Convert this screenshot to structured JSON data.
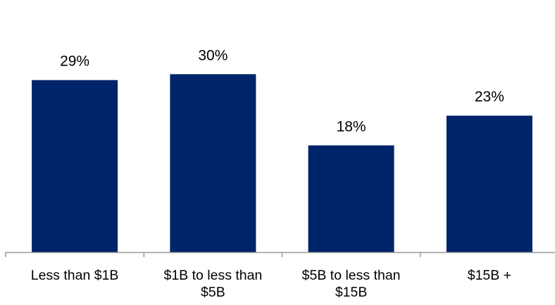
{
  "chart_data": {
    "type": "bar",
    "categories": [
      [
        "Less than $1B"
      ],
      [
        "$1B to less than",
        "$5B"
      ],
      [
        "$5B to less than",
        "$15B"
      ],
      [
        "$15B +"
      ]
    ],
    "values": [
      29,
      30,
      18,
      23
    ],
    "value_labels": [
      "29%",
      "30%",
      "18%",
      "23%"
    ],
    "unit": "%",
    "title": "",
    "xlabel": "",
    "ylabel": "",
    "ylim": [
      0,
      33
    ],
    "grid": false,
    "legend": "none",
    "bar_color": "#002469",
    "axis_color": "#999999"
  }
}
